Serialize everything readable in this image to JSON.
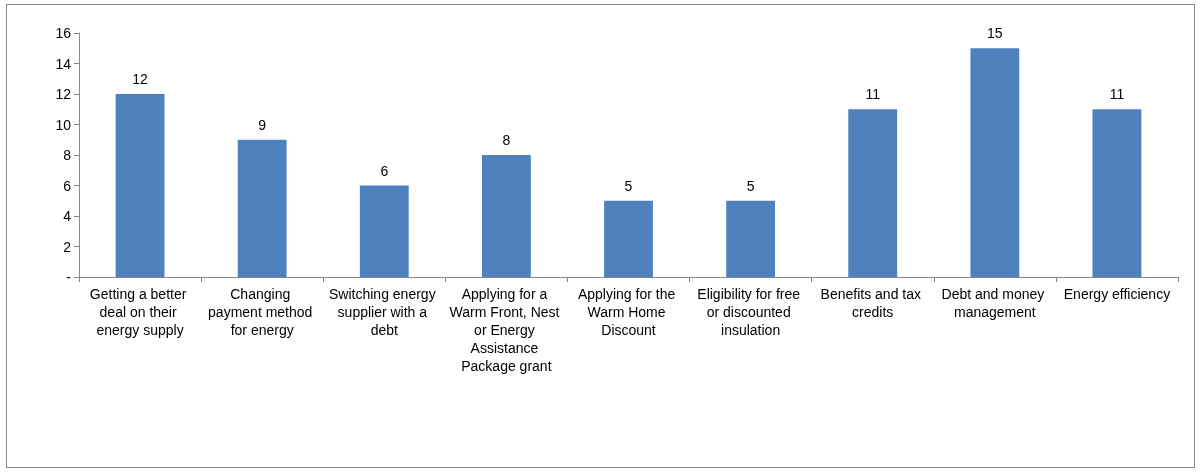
{
  "chart_data": {
    "type": "bar",
    "categories": [
      "Getting a better deal on their energy supply",
      "Changing payment method for energy",
      "Switching energy supplier with a debt",
      "Applying for a Warm Front, Nest or Energy Assistance Package grant",
      "Applying for the Warm Home Discount",
      "Eligibility for free or discounted insulation",
      "Benefits and tax credits",
      "Debt and money management",
      "Energy efficiency"
    ],
    "values": [
      12,
      9,
      6,
      8,
      5,
      5,
      11,
      15,
      11
    ],
    "color": "#4f81bd",
    "ylim": [
      0,
      16
    ],
    "yticks": [
      {
        "value": 0,
        "label": "-"
      },
      2,
      4,
      6,
      8,
      10,
      12,
      14,
      16
    ],
    "grid": false,
    "data_labels": true
  }
}
